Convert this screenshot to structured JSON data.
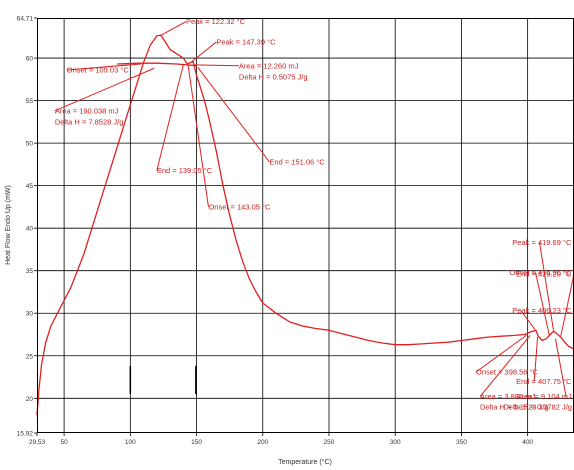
{
  "chart_data": {
    "type": "line",
    "xlabel": "Temperature (°C)",
    "ylabel": "Heat Flow Endo Up (mW)",
    "xlim": [
      29.53,
      435
    ],
    "ylim": [
      15.92,
      64.71
    ],
    "x_ticks": [
      {
        "value": 29.53,
        "label": "29,53"
      },
      {
        "value": 50,
        "label": "50"
      },
      {
        "value": 100,
        "label": "100"
      },
      {
        "value": 150,
        "label": "150"
      },
      {
        "value": 200,
        "label": "200"
      },
      {
        "value": 250,
        "label": "250"
      },
      {
        "value": 300,
        "label": "300"
      },
      {
        "value": 350,
        "label": "350"
      },
      {
        "value": 400,
        "label": "400"
      }
    ],
    "y_ticks": [
      {
        "value": 15.92,
        "label": "15,92"
      },
      {
        "value": 20,
        "label": "20"
      },
      {
        "value": 25,
        "label": "25"
      },
      {
        "value": 30,
        "label": "30"
      },
      {
        "value": 35,
        "label": "35"
      },
      {
        "value": 40,
        "label": "40"
      },
      {
        "value": 45,
        "label": "45"
      },
      {
        "value": 50,
        "label": "50"
      },
      {
        "value": 55,
        "label": "55"
      },
      {
        "value": 60,
        "label": "60"
      },
      {
        "value": 64.71,
        "label": "64,71"
      }
    ],
    "grid": true,
    "series": [
      {
        "color": "#e02020",
        "points": [
          [
            29.5,
            18.0
          ],
          [
            31,
            21.0
          ],
          [
            33,
            24.0
          ],
          [
            36,
            26.5
          ],
          [
            40,
            28.5
          ],
          [
            45,
            30.0
          ],
          [
            50,
            31.5
          ],
          [
            55,
            33.0
          ],
          [
            60,
            35.0
          ],
          [
            65,
            37.0
          ],
          [
            70,
            39.5
          ],
          [
            75,
            42.0
          ],
          [
            80,
            44.5
          ],
          [
            85,
            47.0
          ],
          [
            90,
            49.5
          ],
          [
            95,
            52.0
          ],
          [
            100,
            54.5
          ],
          [
            105,
            57.0
          ],
          [
            110,
            59.5
          ],
          [
            115,
            61.5
          ],
          [
            120,
            62.6
          ],
          [
            123,
            62.7
          ],
          [
            126,
            62.0
          ],
          [
            130,
            61.0
          ],
          [
            135,
            60.5
          ],
          [
            140,
            60.0
          ],
          [
            143,
            59.3
          ],
          [
            146,
            59.5
          ],
          [
            147.4,
            59.6
          ],
          [
            150,
            58.0
          ],
          [
            153,
            56.5
          ],
          [
            156,
            55.0
          ],
          [
            160,
            52.5
          ],
          [
            165,
            49.0
          ],
          [
            170,
            45.0
          ],
          [
            175,
            41.5
          ],
          [
            180,
            38.5
          ],
          [
            185,
            36.0
          ],
          [
            190,
            34.0
          ],
          [
            195,
            32.5
          ],
          [
            200,
            31.2
          ],
          [
            210,
            30.0
          ],
          [
            220,
            29.0
          ],
          [
            230,
            28.5
          ],
          [
            240,
            28.2
          ],
          [
            250,
            28.0
          ],
          [
            260,
            27.6
          ],
          [
            270,
            27.2
          ],
          [
            280,
            26.8
          ],
          [
            290,
            26.5
          ],
          [
            300,
            26.3
          ],
          [
            310,
            26.3
          ],
          [
            320,
            26.4
          ],
          [
            330,
            26.5
          ],
          [
            340,
            26.6
          ],
          [
            350,
            26.8
          ],
          [
            360,
            27.0
          ],
          [
            370,
            27.2
          ],
          [
            380,
            27.3
          ],
          [
            390,
            27.4
          ],
          [
            398,
            27.5
          ],
          [
            402,
            27.8
          ],
          [
            406.2,
            28.0
          ],
          [
            408,
            27.3
          ],
          [
            411,
            26.8
          ],
          [
            414,
            27.0
          ],
          [
            417,
            27.5
          ],
          [
            419.7,
            27.9
          ],
          [
            422,
            27.6
          ],
          [
            425,
            27.2
          ],
          [
            428,
            26.6
          ],
          [
            431,
            26.1
          ],
          [
            435,
            25.8
          ]
        ]
      },
      {
        "color": "#e02020",
        "points": [
          [
            90,
            59.3
          ],
          [
            105,
            59.4
          ],
          [
            120,
            59.4
          ],
          [
            135,
            59.3
          ],
          [
            150,
            59.1
          ]
        ]
      }
    ],
    "annotations": [
      {
        "id": "peak1",
        "text": "Peak = 122.32 °C",
        "target": [
          122.3,
          62.6
        ],
        "text_at": [
          142,
          64.0
        ]
      },
      {
        "id": "peak2",
        "text": "Peak = 147.39 °C",
        "target": [
          146.5,
          59.6
        ],
        "text_at": [
          165,
          61.6
        ]
      },
      {
        "id": "area2",
        "text": "Area = 12.260 mJ",
        "target": [
          148,
          59.2
        ],
        "text_at": [
          182,
          58.8
        ]
      },
      {
        "id": "delta2",
        "text": "Delta H = 0.5075 J/g",
        "target": null,
        "text_at": [
          182,
          57.5
        ]
      },
      {
        "id": "onset1",
        "text": "Onset = 109.03 °C",
        "target": [
          108,
          59.3
        ],
        "text_at": [
          52,
          58.3
        ]
      },
      {
        "id": "area1",
        "text": "Area = 190.038 mJ",
        "target": [
          118,
          58.8
        ],
        "text_at": [
          43,
          53.5
        ]
      },
      {
        "id": "delta1",
        "text": "Delta H = 7.8528 J/g",
        "target": null,
        "text_at": [
          43,
          52.2
        ]
      },
      {
        "id": "end1",
        "text": "End = 139.05 °C",
        "target": [
          140,
          59.2
        ],
        "text_at": [
          120,
          46.5
        ]
      },
      {
        "id": "end2",
        "text": "End = 151.06 °C",
        "target": [
          151,
          58.9
        ],
        "text_at": [
          205,
          47.5
        ]
      },
      {
        "id": "onset2",
        "text": "Onset = 143.05 °C",
        "target": [
          143.5,
          59.3
        ],
        "text_at": [
          159,
          42.2
        ]
      },
      {
        "id": "peak4",
        "text": "Peak = 419.69 °C",
        "target": [
          419.5,
          28.0
        ],
        "text_at": [
          409,
          38.0
        ]
      },
      {
        "id": "onset4",
        "text": "Onset = 416.96 °C",
        "target": [
          416.5,
          27.3
        ],
        "text_at": [
          406,
          34.5
        ]
      },
      {
        "id": "end4",
        "text": "End = 425.20 °C",
        "target": [
          425,
          27.3
        ],
        "text_at": [
          435,
          34.3
        ]
      },
      {
        "id": "peak3",
        "text": "Peak = 406.23 °C",
        "target": [
          405.5,
          28.1
        ],
        "text_at": [
          395,
          30.0
        ]
      },
      {
        "id": "onset3",
        "text": "Onset = 398.56 °C",
        "target": [
          399,
          27.4
        ],
        "text_at": [
          361,
          22.8
        ]
      },
      {
        "id": "end3",
        "text": "End = 407.75 °C",
        "target": [
          407.5,
          27.2
        ],
        "text_at": [
          405,
          21.7
        ]
      },
      {
        "id": "area3",
        "text": "Area = 3.886 mJ",
        "target": [
          402,
          27.4
        ],
        "text_at": [
          364,
          19.9
        ]
      },
      {
        "id": "delta3",
        "text": "Delta H = 0.1523 J/g",
        "target": null,
        "text_at": [
          364,
          18.7
        ]
      },
      {
        "id": "area4",
        "text": "Area = 9.104 mJ",
        "target": [
          421,
          27.0
        ],
        "text_at": [
          429,
          19.9
        ]
      },
      {
        "id": "delta4",
        "text": "Delta H = 0.3782 J/g",
        "target": null,
        "text_at": [
          429,
          18.7
        ]
      }
    ],
    "markers": [
      {
        "x": 100,
        "y1": 23.8,
        "y2": 20.5
      },
      {
        "x": 149.5,
        "y1": 23.8,
        "y2": 20.5
      }
    ]
  }
}
